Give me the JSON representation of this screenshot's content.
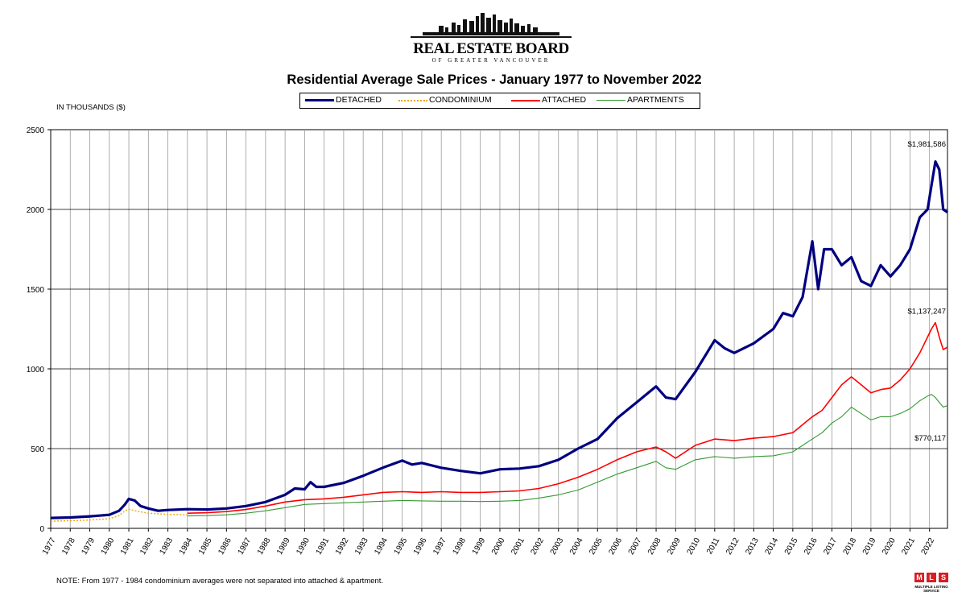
{
  "logo": {
    "name": "REAL ESTATE BOARD",
    "sub": "OF GREATER VANCOUVER"
  },
  "title": "Residential Average Sale Prices  -  January 1977 to November 2022",
  "units_label": "IN THOUSANDS ($)",
  "note": "NOTE:  From 1977 - 1984 condominium averages were not separated into attached & apartment.",
  "mls": {
    "letters": [
      "M",
      "L",
      "S"
    ],
    "tagline": "MULTIPLE LISTING SERVICE"
  },
  "colors": {
    "detached": "#000080",
    "condominium": "#f0a800",
    "attached": "#ff0000",
    "apartments": "#339933",
    "grid": "#999999"
  },
  "chart_data": {
    "type": "line",
    "title": "Residential Average Sale Prices  -  January 1977 to November 2022",
    "ylabel": "IN THOUSANDS ($)",
    "xlabel": "",
    "ylim": [
      0,
      2500
    ],
    "yticks": [
      0,
      500,
      1000,
      1500,
      2000,
      2500
    ],
    "xlim": [
      1977,
      2022.92
    ],
    "xticks": [
      "1977",
      "1978",
      "1979",
      "1980",
      "1981",
      "1982",
      "1983",
      "1984",
      "1985",
      "1986",
      "1987",
      "1988",
      "1989",
      "1990",
      "1991",
      "1992",
      "1993",
      "1994",
      "1995",
      "1996",
      "1997",
      "1998",
      "1999",
      "2000",
      "2001",
      "2002",
      "2003",
      "2004",
      "2005",
      "2006",
      "2007",
      "2008",
      "2009",
      "2010",
      "2011",
      "2012",
      "2013",
      "2014",
      "2015",
      "2016",
      "2017",
      "2018",
      "2019",
      "2020",
      "2021",
      "2022"
    ],
    "grid": true,
    "legend_position": "top-center",
    "annotations": [
      {
        "text": "$1,981,586",
        "series": "DETACHED"
      },
      {
        "text": "$1,137,247",
        "series": "ATTACHED"
      },
      {
        "text": "$770,117",
        "series": "APARTMENTS"
      }
    ],
    "series": [
      {
        "name": "DETACHED",
        "style": "thick",
        "x": [
          1977,
          1978,
          1979,
          1980,
          1980.5,
          1980.8,
          1981.0,
          1981.3,
          1981.6,
          1982,
          1982.5,
          1983,
          1984,
          1985,
          1986,
          1987,
          1988,
          1989,
          1989.5,
          1990,
          1990.3,
          1990.6,
          1991,
          1992,
          1993,
          1994,
          1995,
          1995.5,
          1996,
          1997,
          1998,
          1999,
          2000,
          2001,
          2002,
          2003,
          2004,
          2005,
          2006,
          2007,
          2008,
          2008.5,
          2009,
          2010,
          2011,
          2011.5,
          2012,
          2013,
          2014,
          2014.5,
          2015,
          2015.5,
          2016,
          2016.3,
          2016.6,
          2017,
          2017.5,
          2018,
          2018.5,
          2019,
          2019.5,
          2020,
          2020.5,
          2021,
          2021.5,
          2021.9,
          2022.1,
          2022.3,
          2022.5,
          2022.7,
          2022.92
        ],
        "y": [
          65,
          68,
          75,
          85,
          110,
          150,
          185,
          175,
          140,
          125,
          110,
          115,
          120,
          118,
          125,
          140,
          165,
          210,
          250,
          245,
          290,
          260,
          260,
          285,
          330,
          380,
          425,
          400,
          410,
          380,
          360,
          345,
          370,
          375,
          390,
          430,
          500,
          560,
          690,
          790,
          890,
          820,
          810,
          980,
          1180,
          1130,
          1100,
          1160,
          1250,
          1350,
          1330,
          1450,
          1800,
          1500,
          1750,
          1750,
          1650,
          1700,
          1550,
          1520,
          1650,
          1580,
          1650,
          1750,
          1950,
          2000,
          2150,
          2300,
          2250,
          2000,
          1982
        ]
      },
      {
        "name": "CONDOMINIUM",
        "style": "dotted",
        "x": [
          1977,
          1978,
          1979,
          1980,
          1980.5,
          1980.8,
          1981.0,
          1981.3,
          1982,
          1983,
          1984
        ],
        "y": [
          45,
          48,
          52,
          60,
          80,
          110,
          120,
          110,
          95,
          88,
          85
        ]
      },
      {
        "name": "ATTACHED",
        "style": "solid",
        "x": [
          1984,
          1985,
          1986,
          1987,
          1988,
          1989,
          1990,
          1991,
          1992,
          1993,
          1994,
          1995,
          1996,
          1997,
          1998,
          1999,
          2000,
          2001,
          2002,
          2003,
          2004,
          2005,
          2006,
          2007,
          2008,
          2008.5,
          2009,
          2010,
          2011,
          2012,
          2013,
          2014,
          2015,
          2016,
          2016.5,
          2017,
          2017.5,
          2018,
          2018.5,
          2019,
          2019.5,
          2020,
          2020.5,
          2021,
          2021.5,
          2021.9,
          2022.1,
          2022.3,
          2022.5,
          2022.7,
          2022.92
        ],
        "y": [
          95,
          98,
          105,
          118,
          140,
          165,
          180,
          185,
          195,
          210,
          225,
          230,
          225,
          230,
          225,
          225,
          230,
          235,
          250,
          280,
          320,
          370,
          430,
          480,
          510,
          480,
          440,
          520,
          560,
          550,
          565,
          575,
          600,
          700,
          740,
          820,
          900,
          950,
          900,
          850,
          870,
          880,
          930,
          1000,
          1100,
          1200,
          1250,
          1290,
          1200,
          1120,
          1137
        ]
      },
      {
        "name": "APARTMENTS",
        "style": "thin",
        "x": [
          1984,
          1985,
          1986,
          1987,
          1988,
          1989,
          1990,
          1991,
          1992,
          1993,
          1994,
          1995,
          1996,
          1997,
          1998,
          1999,
          2000,
          2001,
          2002,
          2003,
          2004,
          2005,
          2006,
          2007,
          2008,
          2008.5,
          2009,
          2010,
          2011,
          2012,
          2013,
          2014,
          2015,
          2016,
          2016.5,
          2017,
          2017.5,
          2018,
          2018.5,
          2019,
          2019.5,
          2020,
          2020.5,
          2021,
          2021.5,
          2021.9,
          2022.1,
          2022.3,
          2022.5,
          2022.7,
          2022.92
        ],
        "y": [
          78,
          80,
          85,
          95,
          110,
          130,
          150,
          155,
          160,
          165,
          170,
          175,
          172,
          170,
          170,
          168,
          170,
          175,
          190,
          210,
          240,
          290,
          340,
          380,
          420,
          380,
          370,
          430,
          450,
          440,
          450,
          455,
          480,
          560,
          600,
          660,
          700,
          760,
          720,
          680,
          700,
          700,
          720,
          750,
          800,
          830,
          840,
          820,
          790,
          760,
          770
        ]
      }
    ]
  }
}
